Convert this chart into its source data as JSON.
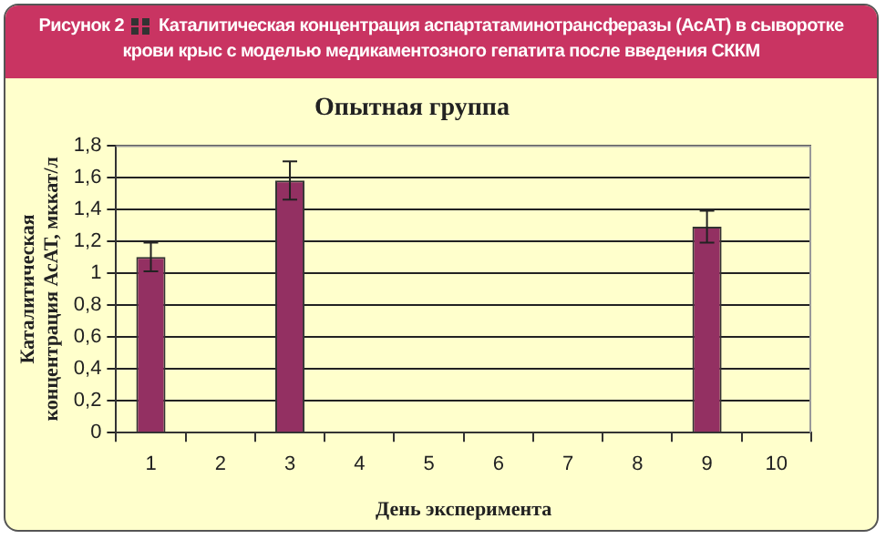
{
  "chart_data": {
    "type": "bar",
    "title": "Опытная группа",
    "xlabel": "День эксперимента",
    "ylabel": "Каталитическая концентрация АсАТ, мккат/л",
    "annotations": [
      "Рисунок 2",
      "Каталитическая концентрация аспартатаминотрансферазы (АсАТ) в сыворотке крови крыс с моделью медикаментозного гепатита после введения СККМ"
    ],
    "categories": [
      "1",
      "2",
      "3",
      "4",
      "5",
      "6",
      "7",
      "8",
      "9",
      "10"
    ],
    "values": [
      1.1,
      null,
      1.58,
      null,
      null,
      null,
      null,
      null,
      1.29,
      null
    ],
    "errors": [
      0.09,
      null,
      0.12,
      null,
      null,
      null,
      null,
      null,
      0.1,
      null
    ],
    "color": "#933062",
    "ylim": [
      0,
      1.8
    ],
    "yticks": [
      0,
      {
        "value": 0.2,
        "label": "0,2"
      },
      {
        "value": 0.4,
        "label": "0,4"
      },
      {
        "value": 0.6,
        "label": "0,6"
      },
      {
        "value": 0.8,
        "label": "0,8"
      },
      1,
      {
        "value": 1.2,
        "label": "1,2"
      },
      {
        "value": 1.4,
        "label": "1,4"
      },
      {
        "value": 1.6,
        "label": "1,6"
      },
      {
        "value": 1.8,
        "label": "1,8"
      }
    ],
    "grid": "y",
    "legend": false
  }
}
